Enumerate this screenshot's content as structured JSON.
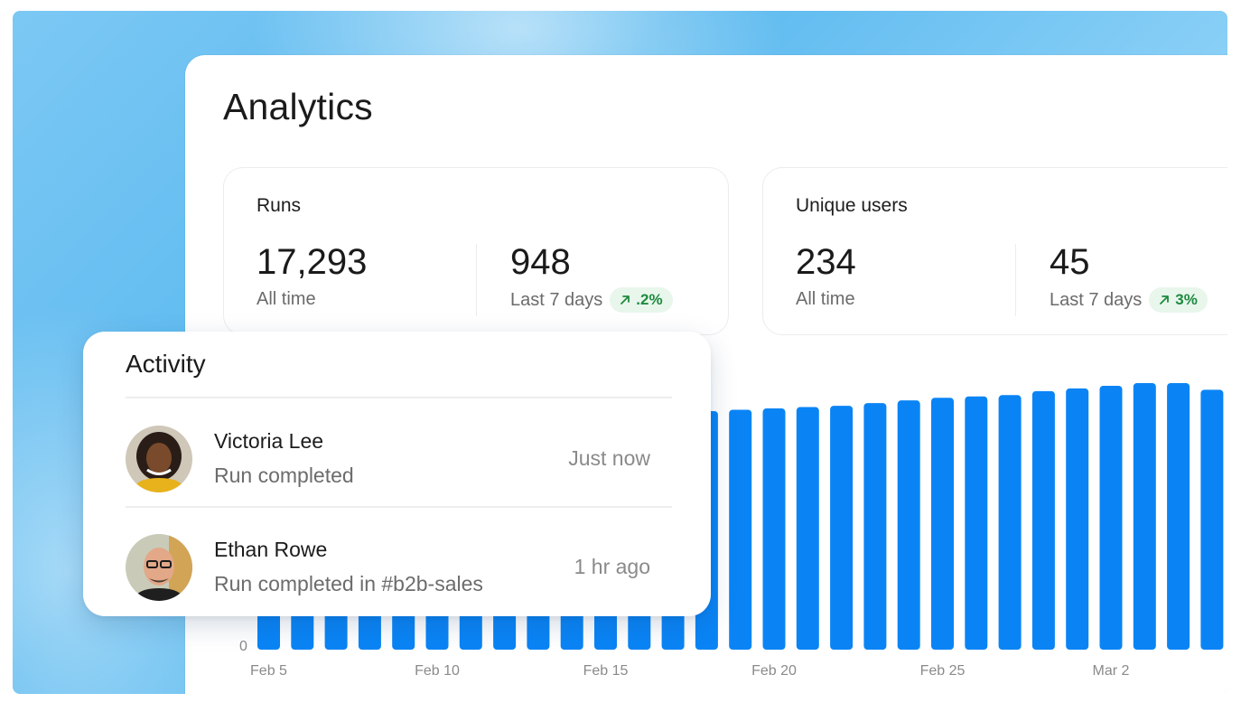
{
  "page": {
    "title": "Analytics"
  },
  "stats": [
    {
      "title": "Runs",
      "all_time_value": "17,293",
      "all_time_label": "All time",
      "recent_value": "948",
      "recent_label": "Last 7 days",
      "trend": ".2%",
      "trend_direction": "up"
    },
    {
      "title": "Unique users",
      "all_time_value": "234",
      "all_time_label": "All time",
      "recent_value": "45",
      "recent_label": "Last 7 days",
      "trend": "3%",
      "trend_direction": "up"
    }
  ],
  "activity": {
    "title": "Activity",
    "items": [
      {
        "name": "Victoria Lee",
        "detail": "Run completed",
        "time": "Just now",
        "avatar_icon": "person-avatar-icon"
      },
      {
        "name": "Ethan Rowe",
        "detail": "Run completed in #b2b-sales",
        "time": "1 hr ago",
        "avatar_icon": "person-avatar-icon"
      }
    ]
  },
  "colors": {
    "bar": "#0a84f5",
    "bar_projected": "#cbe5fb",
    "trend_bg": "#e8f6ec",
    "trend_text": "#1e8a3e"
  },
  "chart_data": {
    "type": "bar",
    "y_tick_labels": [
      "0"
    ],
    "x_tick_labels": [
      "Feb 5",
      "Feb 10",
      "Feb 15",
      "Feb 20",
      "Feb 25",
      "Mar 2"
    ],
    "x_tick_indices": [
      0,
      5,
      10,
      15,
      20,
      25
    ],
    "categories": [
      "Feb 5",
      "Feb 6",
      "Feb 7",
      "Feb 8",
      "Feb 9",
      "Feb 10",
      "Feb 11",
      "Feb 12",
      "Feb 13",
      "Feb 14",
      "Feb 15",
      "Feb 16",
      "Feb 17",
      "Feb 18",
      "Feb 19",
      "Feb 20",
      "Feb 21",
      "Feb 22",
      "Feb 23",
      "Feb 24",
      "Feb 25",
      "Feb 26",
      "Feb 27",
      "Feb 28",
      "Mar 1",
      "Mar 2",
      "Mar 3",
      "Mar 4",
      "Mar 5",
      "Mar 6",
      "Mar 7"
    ],
    "values": [
      0.5,
      0.5,
      0.5,
      0.5,
      0.5,
      0.5,
      0.5,
      0.5,
      0.5,
      0.5,
      0.5,
      0.5,
      0.5,
      0.895,
      0.9,
      0.905,
      0.91,
      0.915,
      0.925,
      0.935,
      0.945,
      0.95,
      0.955,
      0.97,
      0.98,
      0.99,
      1.0,
      1.0,
      0.975,
      0.89,
      0.925
    ],
    "projected": [
      0,
      0,
      0,
      0,
      0,
      0,
      0,
      0,
      0,
      0,
      0,
      0,
      0,
      0,
      0,
      0,
      0,
      0,
      0,
      0,
      0,
      0,
      0,
      0,
      0,
      0,
      0,
      0,
      0,
      0.09,
      0.035
    ],
    "ylim": [
      0,
      1
    ],
    "grid": false,
    "legend": "none"
  }
}
